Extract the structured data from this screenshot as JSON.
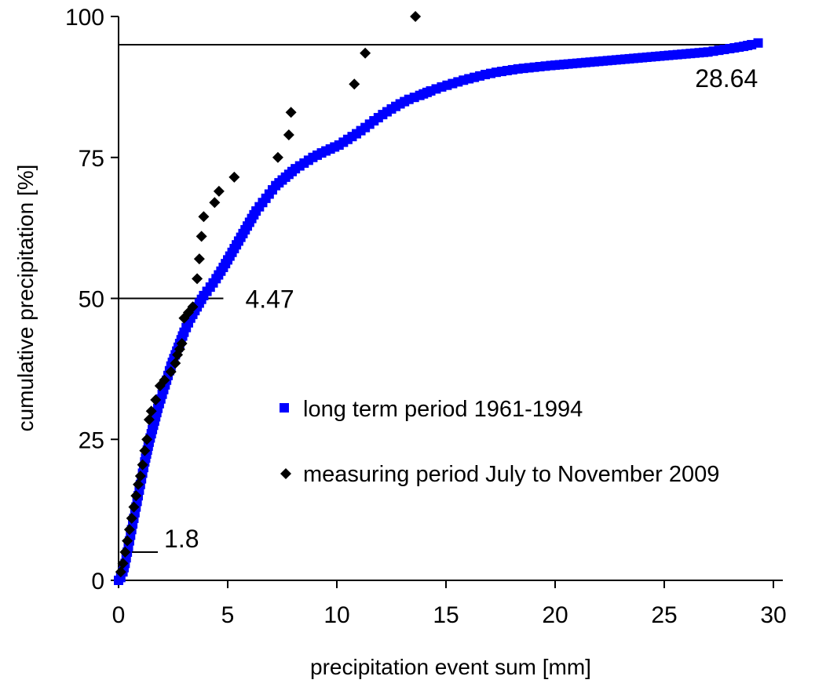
{
  "chart_data": {
    "type": "scatter",
    "title": "",
    "xlabel": "precipitation event sum [mm]",
    "ylabel": "cumulative precipitation [%]",
    "xlim": [
      0,
      30
    ],
    "ylim": [
      0,
      100
    ],
    "xticks": [
      0,
      5,
      10,
      15,
      20,
      25,
      30
    ],
    "yticks": [
      0,
      25,
      50,
      75,
      100
    ],
    "grid": false,
    "legend_position": "center-right",
    "series": [
      {
        "name": "long term period 1961-1994",
        "marker": "square",
        "color": "#0000ff",
        "x": [
          0,
          0.1,
          0.2,
          0.3,
          0.4,
          0.5,
          0.6,
          0.7,
          0.8,
          0.9,
          1.0,
          1.1,
          1.2,
          1.4,
          1.6,
          1.8,
          2.0,
          2.2,
          2.4,
          2.6,
          2.8,
          3.0,
          3.3,
          3.6,
          3.9,
          4.2,
          4.47,
          4.8,
          5.1,
          5.4,
          5.7,
          6.0,
          6.3,
          6.6,
          6.9,
          7.2,
          7.5,
          7.8,
          8.1,
          8.5,
          8.9,
          9.3,
          9.7,
          10.1,
          10.5,
          10.9,
          11.3,
          11.7,
          12.1,
          12.5,
          12.9,
          13.3,
          13.8,
          14.3,
          14.8,
          15.3,
          15.8,
          16.3,
          16.8,
          17.3,
          17.8,
          18.3,
          18.8,
          19.3,
          19.8,
          20.4,
          21.0,
          21.6,
          22.2,
          22.8,
          23.4,
          24.0,
          24.6,
          25.2,
          25.8,
          26.4,
          27.0,
          27.5,
          28.0,
          28.64,
          29.0,
          29.3
        ],
        "y": [
          0,
          0.5,
          1.5,
          3,
          5,
          7,
          9,
          11,
          13,
          15,
          17,
          19,
          21,
          24.5,
          27.5,
          30.5,
          33,
          35.5,
          38,
          40,
          42,
          44,
          46.5,
          48.5,
          50.5,
          52,
          53.5,
          55.5,
          57.5,
          59.5,
          61.5,
          63.5,
          65.5,
          67,
          68.5,
          70,
          71,
          72,
          73,
          74,
          75,
          75.8,
          76.5,
          77.2,
          78.2,
          79.2,
          80.3,
          81.5,
          82.6,
          83.6,
          84.5,
          85.3,
          86,
          86.8,
          87.5,
          88.1,
          88.7,
          89.2,
          89.7,
          90.1,
          90.4,
          90.7,
          90.9,
          91.1,
          91.3,
          91.5,
          91.7,
          91.9,
          92.1,
          92.3,
          92.5,
          92.7,
          92.9,
          93.1,
          93.3,
          93.5,
          93.7,
          94.0,
          94.3,
          94.7,
          95.0,
          95.3
        ]
      },
      {
        "name": "measuring period July to November 2009",
        "marker": "diamond",
        "color": "#000000",
        "x": [
          0.1,
          0.2,
          0.3,
          0.4,
          0.5,
          0.6,
          0.7,
          0.8,
          0.9,
          1.0,
          1.1,
          1.2,
          1.3,
          1.4,
          1.5,
          1.7,
          1.9,
          2.1,
          2.4,
          2.6,
          2.7,
          2.8,
          2.9,
          3.0,
          3.2,
          3.4,
          3.6,
          3.7,
          3.8,
          3.9,
          4.4,
          4.6,
          5.3,
          7.3,
          7.8,
          7.9,
          10.8,
          11.3,
          13.6
        ],
        "y": [
          1.5,
          3,
          5,
          7,
          9,
          11,
          13,
          15,
          17,
          18.5,
          20.5,
          23,
          25,
          28.5,
          30,
          32,
          34.5,
          35.5,
          37,
          38.5,
          40,
          41,
          42,
          46.5,
          47.5,
          48.5,
          53.5,
          57,
          61,
          64.5,
          67,
          69,
          71.5,
          75,
          79,
          83,
          88,
          93.5,
          100
        ]
      }
    ],
    "reference_lines": [
      {
        "y": 95,
        "x_from": 0,
        "x_to": 29.5,
        "label": "28.64"
      },
      {
        "y": 50,
        "x_from": 0,
        "x_to": 4.8,
        "label": "4.47"
      },
      {
        "y": 5,
        "x_from": 0.6,
        "x_to": 1.8,
        "label": "1.8"
      }
    ]
  }
}
